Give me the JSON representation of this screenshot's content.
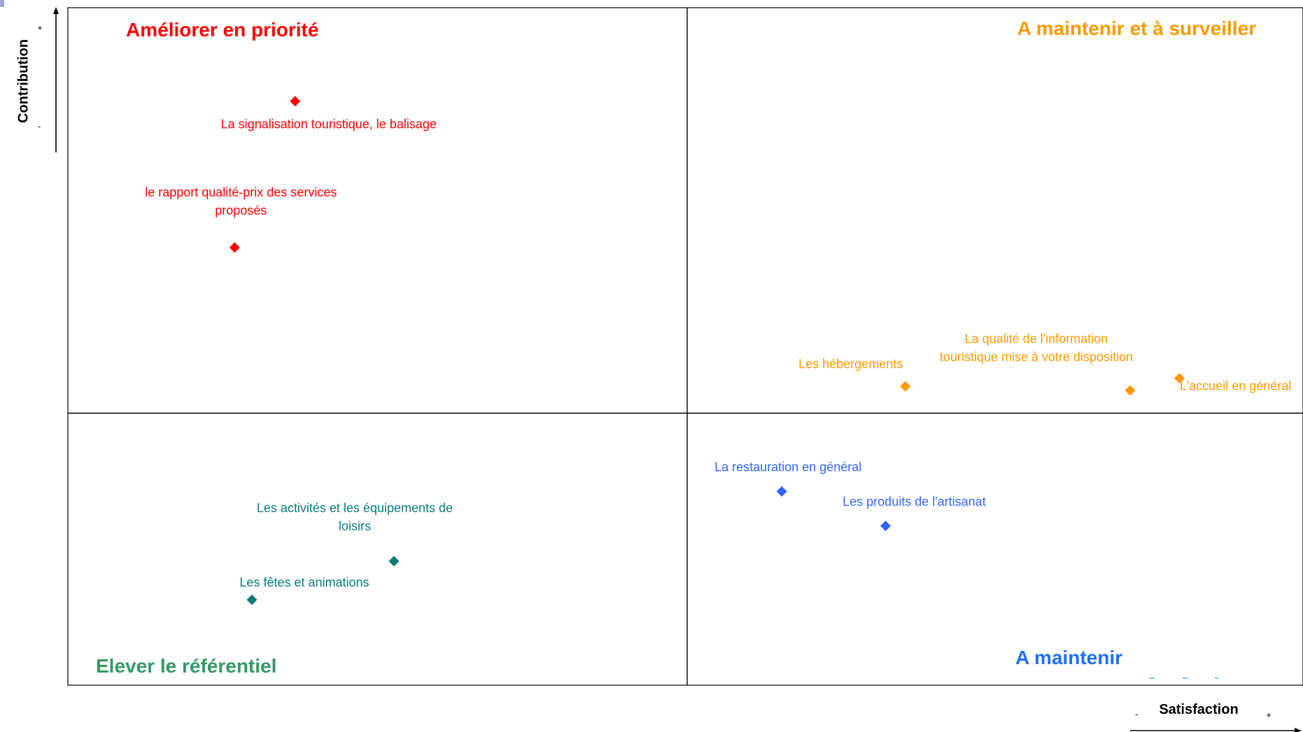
{
  "chart_data": {
    "type": "scatter",
    "x_axis": {
      "label": "Satisfaction",
      "low": "-",
      "high": "+"
    },
    "y_axis": {
      "label": "Contribution",
      "low": "-",
      "high": "+"
    },
    "quadrants": [
      {
        "id": "top-left",
        "title": "Améliorer en priorité",
        "color": "#ff0000"
      },
      {
        "id": "top-right",
        "title": "A maintenir et à surveiller",
        "color": "#ff9900"
      },
      {
        "id": "bottom-left",
        "title": "Elever le référentiel",
        "color": "#339966"
      },
      {
        "id": "bottom-right",
        "title": "A maintenir",
        "color": "#1f6fff"
      }
    ],
    "series": [
      {
        "quadrant": "top-left",
        "color": "#ff0000",
        "points": [
          {
            "label": "La signalisation touristique, le balisage",
            "x": 0.184,
            "y": 0.862
          },
          {
            "label": "le rapport qualité-prix des services proposés",
            "x": 0.135,
            "y": 0.646
          }
        ]
      },
      {
        "quadrant": "top-right",
        "color": "#ff9900",
        "points": [
          {
            "label": "Les hébergements",
            "x": 0.678,
            "y": 0.441
          },
          {
            "label": "La qualité de l'information touristique mise à votre disposition",
            "x": 0.86,
            "y": 0.435
          },
          {
            "label": "L'accueil en général",
            "x": 0.9,
            "y": 0.453
          }
        ]
      },
      {
        "quadrant": "bottom-left",
        "color": "#0a7a7a",
        "points": [
          {
            "label": "Les activités et les équipements de loisirs",
            "x": 0.264,
            "y": 0.183
          },
          {
            "label": "Les fêtes et animations",
            "x": 0.149,
            "y": 0.126
          }
        ]
      },
      {
        "quadrant": "bottom-right",
        "color": "#3366ff",
        "points": [
          {
            "label": "La restauration en général",
            "x": 0.578,
            "y": 0.286
          },
          {
            "label": "Les produits de l'artisanat",
            "x": 0.662,
            "y": 0.235
          }
        ]
      }
    ]
  }
}
